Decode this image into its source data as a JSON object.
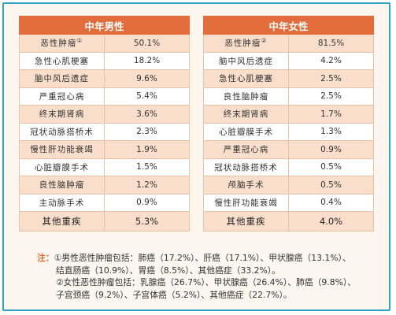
{
  "male": {
    "title": "中年男性",
    "rows": [
      {
        "name": "恶性肿瘤",
        "sup": "①",
        "value": "50.1%"
      },
      {
        "name": "急性心肌梗塞",
        "value": "18.2%"
      },
      {
        "name": "脑中风后遗症",
        "value": "9.6%"
      },
      {
        "name": "严重冠心病",
        "value": "5.4%"
      },
      {
        "name": "终末期肾病",
        "value": "3.6%"
      },
      {
        "name": "冠状动脉搭桥术",
        "value": "2.3%"
      },
      {
        "name": "慢性肝功能衰竭",
        "value": "1.9%"
      },
      {
        "name": "心脏瓣膜手术",
        "value": "1.5%"
      },
      {
        "name": "良性脑肿瘤",
        "value": "1.2%"
      },
      {
        "name": "主动脉手术",
        "value": "0.9%"
      },
      {
        "name": "其他重疾",
        "value": "5.3%"
      }
    ]
  },
  "female": {
    "title": "中年女性",
    "rows": [
      {
        "name": "恶性肿瘤",
        "sup": "②",
        "value": "81.5%"
      },
      {
        "name": "脑中风后遗症",
        "value": "4.2%"
      },
      {
        "name": "急性心肌梗塞",
        "value": "2.5%"
      },
      {
        "name": "良性脑肿瘤",
        "value": "2.5%"
      },
      {
        "name": "终末期肾病",
        "value": "1.7%"
      },
      {
        "name": "心脏瓣膜手术",
        "value": "1.3%"
      },
      {
        "name": "严重冠心病",
        "value": "0.9%"
      },
      {
        "name": "冠状动脉搭桥术",
        "value": "0.5%"
      },
      {
        "name": "颅脑手术",
        "value": "0.5%"
      },
      {
        "name": "慢性肝功能衰竭",
        "value": "0.4%"
      },
      {
        "name": "其他重疾",
        "value": "4.0%"
      }
    ]
  },
  "notes": {
    "label": "注：",
    "line1": "①男性恶性肿瘤包括：肺癌（17.2%）、肝癌（17.1%）、甲状腺癌（13.1%）、",
    "line2": "结直肠癌（10.9%）、胃癌（8.5%）、其他癌症（33.2%）。",
    "line3": "②女性恶性肿瘤包括：乳腺癌（26.7%）、甲状腺癌（26.4%）、肺癌（9.8%）、",
    "line4": "子宫颈癌（9.2%）、子宫体癌（5.2%）、其他癌症（22.7%）。"
  }
}
